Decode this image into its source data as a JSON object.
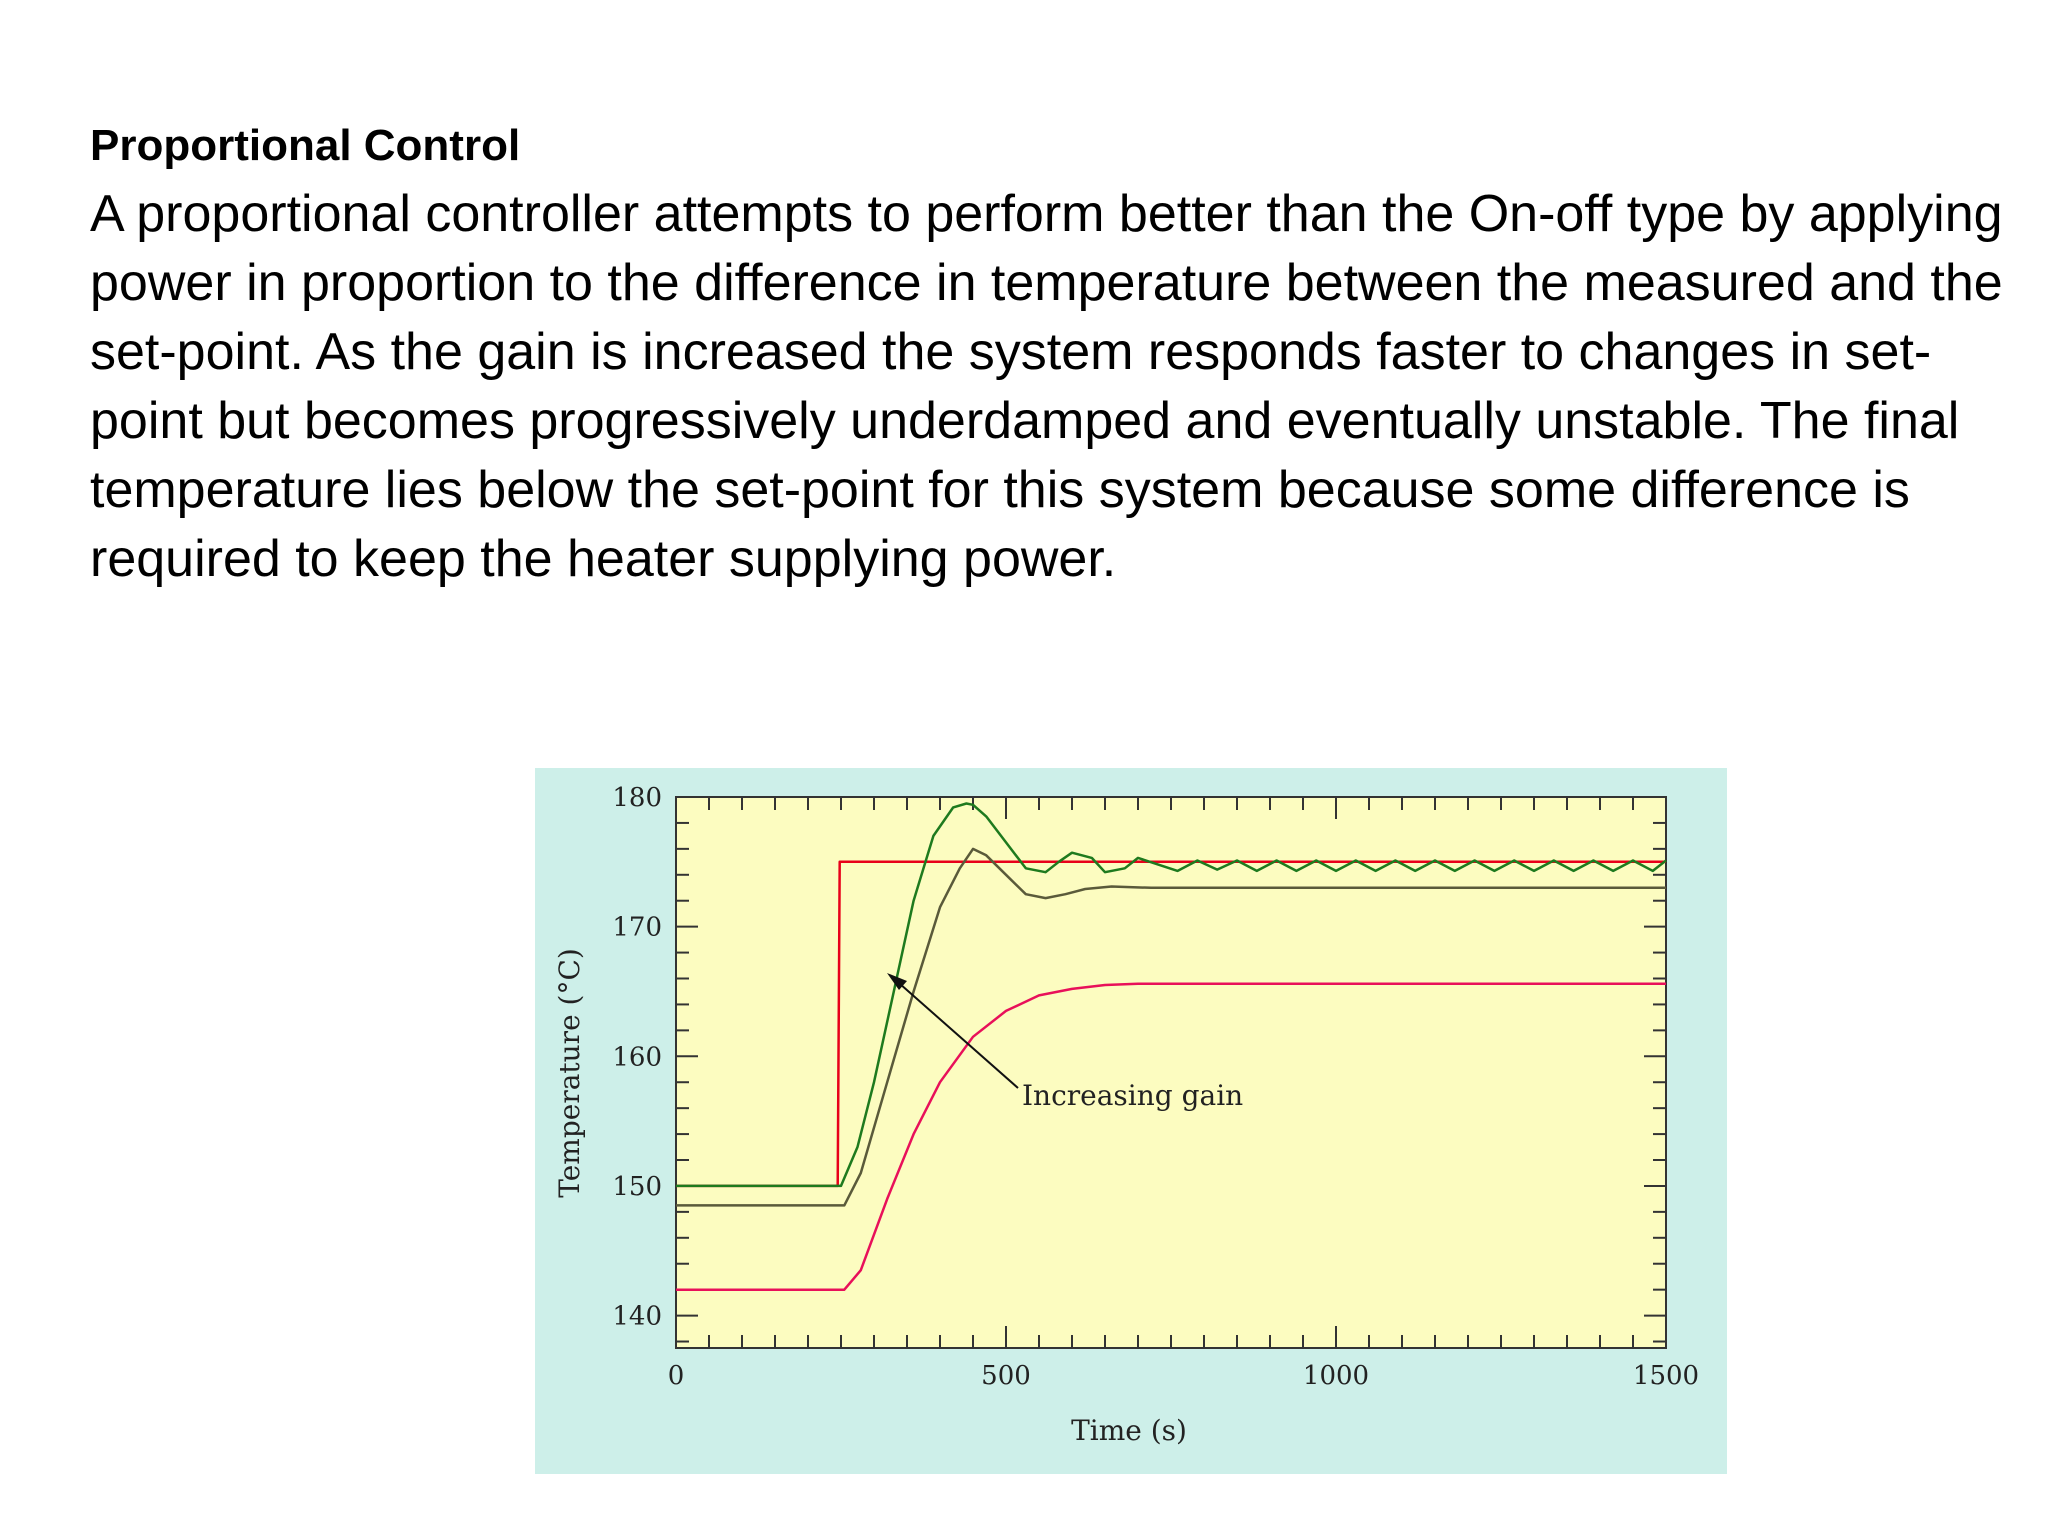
{
  "slide": {
    "heading": "Proportional Control",
    "body": "A proportional controller attempts to perform better than the On-off type by applying power in proportion to the difference in temperature between the measured and the set-point.  As the gain is increased the system responds faster to changes in set-point but becomes progressively underdamped and eventually unstable. The final temperature lies below the set-point for this system because some difference is required to keep the heater supplying power."
  },
  "colors": {
    "panel_background": "#cdefe9",
    "plot_background": "#fcfcc0",
    "setpoint": "#e8001a",
    "low_gain": "#e8105a",
    "medium_gain": "#5a5a3a",
    "high_gain": "#1e7a1e"
  },
  "chart_data": {
    "type": "line",
    "title": "",
    "xlabel": "Time (s)",
    "ylabel": "Temperature (°C)",
    "xlim": [
      0,
      1500
    ],
    "ylim": [
      137.5,
      180
    ],
    "x_ticks": [
      "0",
      "500",
      "1000",
      "1500"
    ],
    "y_ticks": [
      "140",
      "150",
      "160",
      "170",
      "180"
    ],
    "grid": false,
    "annotation": "Increasing gain",
    "series": [
      {
        "color": "#e8001a",
        "x": [
          0,
          245,
          248,
          1500
        ],
        "y": [
          150,
          150,
          175,
          175
        ]
      },
      {
        "color": "#e8105a",
        "x": [
          0,
          255,
          280,
          320,
          360,
          400,
          450,
          500,
          550,
          600,
          650,
          700,
          1500
        ],
        "y": [
          142,
          142,
          143.5,
          149,
          154,
          158,
          161.5,
          163.5,
          164.7,
          165.2,
          165.5,
          165.6,
          165.6
        ]
      },
      {
        "color": "#5a5a3a",
        "x": [
          0,
          255,
          280,
          320,
          360,
          400,
          430,
          450,
          470,
          500,
          530,
          560,
          590,
          620,
          660,
          720,
          1500
        ],
        "y": [
          148.5,
          148.5,
          151,
          158,
          165,
          171.5,
          174.5,
          176,
          175.5,
          174,
          172.5,
          172.2,
          172.5,
          172.9,
          173.1,
          173,
          173
        ]
      },
      {
        "color": "#1e7a1e",
        "x": [
          0,
          250,
          275,
          300,
          330,
          360,
          390,
          420,
          440,
          450,
          470,
          500,
          530,
          560,
          580,
          600,
          630,
          650,
          680,
          700,
          730,
          760,
          790,
          820,
          850,
          880,
          910,
          940,
          970,
          1000,
          1030,
          1060,
          1090,
          1120,
          1150,
          1180,
          1210,
          1240,
          1270,
          1300,
          1330,
          1360,
          1390,
          1420,
          1450,
          1480,
          1500
        ],
        "y": [
          150,
          150,
          153,
          158,
          165,
          172,
          177,
          179.2,
          179.5,
          179.4,
          178.5,
          176.5,
          174.5,
          174.2,
          175,
          175.7,
          175.3,
          174.2,
          174.5,
          175.3,
          174.8,
          174.3,
          175.1,
          174.4,
          175.1,
          174.3,
          175.1,
          174.3,
          175.1,
          174.3,
          175.1,
          174.3,
          175.1,
          174.3,
          175.1,
          174.3,
          175.1,
          174.3,
          175.1,
          174.3,
          175.1,
          174.3,
          175.1,
          174.3,
          175.1,
          174.3,
          175.1
        ]
      }
    ]
  }
}
